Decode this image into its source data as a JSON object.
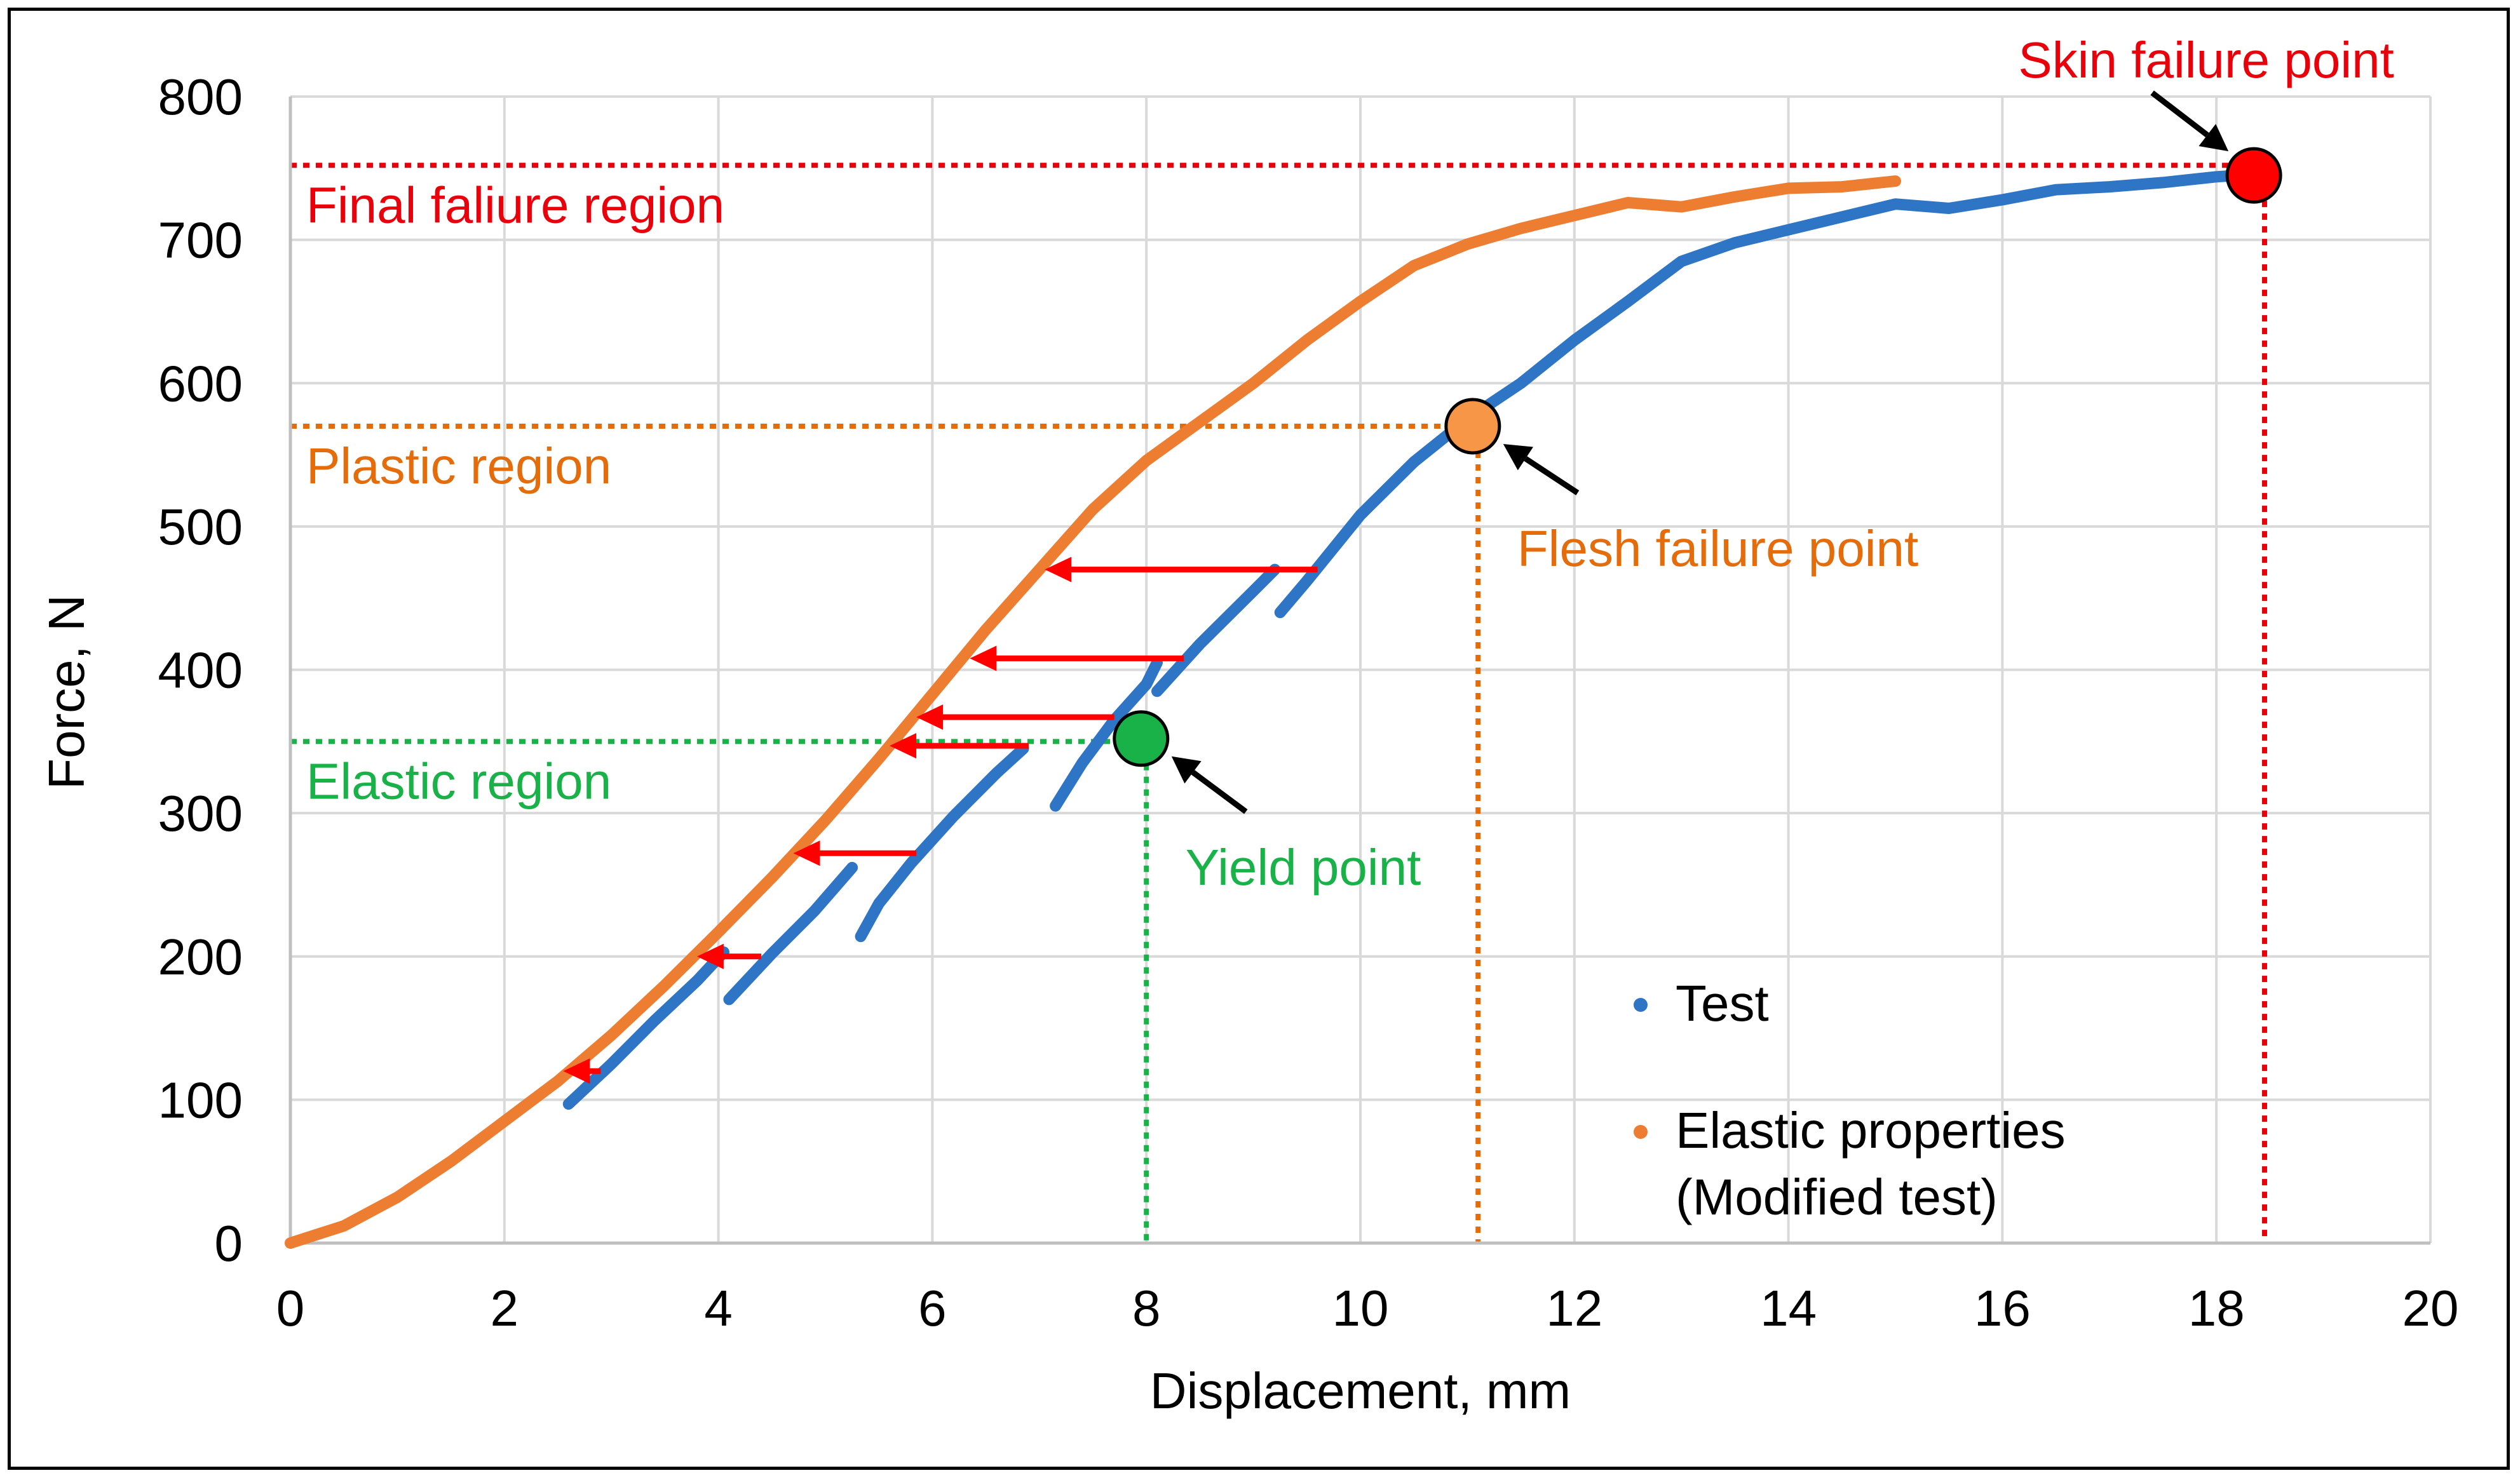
{
  "chart_data": {
    "type": "line",
    "xlabel": "Displacement, mm",
    "ylabel": "Force, N",
    "xlim": [
      0,
      20
    ],
    "ylim": [
      0,
      800
    ],
    "xticks": [
      0,
      2,
      4,
      6,
      8,
      10,
      12,
      14,
      16,
      18,
      20
    ],
    "yticks": [
      0,
      100,
      200,
      300,
      400,
      500,
      600,
      700,
      800
    ],
    "grid": true,
    "legend_position": "bottom-right, inside plot",
    "series": [
      {
        "name": "Test",
        "color": "#2E75C5",
        "segments": [
          [
            [
              2.6,
              97
            ],
            [
              3.0,
              125
            ],
            [
              3.4,
              155
            ],
            [
              3.8,
              183
            ],
            [
              4.05,
              203
            ]
          ],
          [
            [
              4.1,
              170
            ],
            [
              4.5,
              202
            ],
            [
              4.9,
              232
            ],
            [
              5.25,
              262
            ]
          ],
          [
            [
              5.33,
              214
            ],
            [
              5.5,
              237
            ],
            [
              5.8,
              265
            ],
            [
              6.2,
              298
            ],
            [
              6.6,
              328
            ],
            [
              6.85,
              345
            ]
          ],
          [
            [
              7.15,
              305
            ],
            [
              7.4,
              335
            ],
            [
              7.7,
              365
            ],
            [
              8.0,
              390
            ],
            [
              8.1,
              405
            ]
          ],
          [
            [
              8.1,
              385
            ],
            [
              8.5,
              418
            ],
            [
              9.0,
              455
            ],
            [
              9.2,
              470
            ]
          ],
          [
            [
              9.25,
              440
            ],
            [
              9.5,
              462
            ],
            [
              10.0,
              508
            ],
            [
              10.5,
              545
            ],
            [
              11.0,
              575
            ],
            [
              11.5,
              600
            ],
            [
              12.0,
              630
            ],
            [
              12.5,
              657
            ],
            [
              13.0,
              685
            ],
            [
              13.5,
              698
            ],
            [
              14.0,
              707
            ],
            [
              14.5,
              716
            ],
            [
              15.0,
              725
            ],
            [
              15.5,
              722
            ],
            [
              16.0,
              728
            ],
            [
              16.5,
              735
            ],
            [
              17.0,
              737
            ],
            [
              17.5,
              740
            ],
            [
              18.0,
              744
            ],
            [
              18.4,
              746
            ]
          ]
        ]
      },
      {
        "name": "Elastic properties (Modified test)",
        "color": "#ED7D31",
        "points": [
          [
            0,
            0
          ],
          [
            0.5,
            12
          ],
          [
            1,
            32
          ],
          [
            1.5,
            57
          ],
          [
            2,
            85
          ],
          [
            2.5,
            113
          ],
          [
            3,
            145
          ],
          [
            3.5,
            180
          ],
          [
            4,
            217
          ],
          [
            4.5,
            255
          ],
          [
            5,
            295
          ],
          [
            5.5,
            338
          ],
          [
            6,
            383
          ],
          [
            6.5,
            428
          ],
          [
            7,
            470
          ],
          [
            7.5,
            512
          ],
          [
            8,
            546
          ],
          [
            8.5,
            573
          ],
          [
            9,
            600
          ],
          [
            9.5,
            630
          ],
          [
            10,
            657
          ],
          [
            10.5,
            682
          ],
          [
            11,
            697
          ],
          [
            11.5,
            708
          ],
          [
            12,
            717
          ],
          [
            12.5,
            726
          ],
          [
            13,
            723
          ],
          [
            13.5,
            730
          ],
          [
            14,
            736
          ],
          [
            14.5,
            737
          ],
          [
            15,
            741
          ]
        ]
      }
    ],
    "arrows": [
      {
        "from": [
          2.9,
          120
        ],
        "to": [
          2.55,
          120
        ]
      },
      {
        "from": [
          4.4,
          200
        ],
        "to": [
          3.8,
          200
        ]
      },
      {
        "from": [
          5.85,
          272
        ],
        "to": [
          4.7,
          272
        ]
      },
      {
        "from": [
          6.9,
          347
        ],
        "to": [
          5.6,
          347
        ]
      },
      {
        "from": [
          7.7,
          367
        ],
        "to": [
          5.85,
          367
        ]
      },
      {
        "from": [
          8.35,
          408
        ],
        "to": [
          6.35,
          408
        ]
      },
      {
        "from": [
          9.6,
          470
        ],
        "to": [
          7.05,
          470
        ]
      }
    ],
    "arrow_color": "#FF0000",
    "regions": [
      {
        "label": "Final faliure region",
        "y": 752,
        "x_end": 18.45,
        "color": "#E8000B"
      },
      {
        "label": "Plastic region",
        "y": 570,
        "x_end": 11.1,
        "color": "#E46C0A"
      },
      {
        "label": "Elastic region",
        "y": 350,
        "x_end": 8.0,
        "color": "#18B248"
      }
    ],
    "points": [
      {
        "label": "Skin failure point",
        "x": 18.35,
        "y": 745,
        "fill": "#FF0000",
        "label_color": "#E8000B",
        "vline_x": 18.45
      },
      {
        "label": "Flesh failure point",
        "x": 11.05,
        "y": 570,
        "fill": "#F79646",
        "label_color": "#E46C0A",
        "vline_x": 11.1
      },
      {
        "label": "Yield point",
        "x": 7.95,
        "y": 352,
        "fill": "#18B248",
        "label_color": "#18B248",
        "vline_x": 8.0
      }
    ]
  }
}
